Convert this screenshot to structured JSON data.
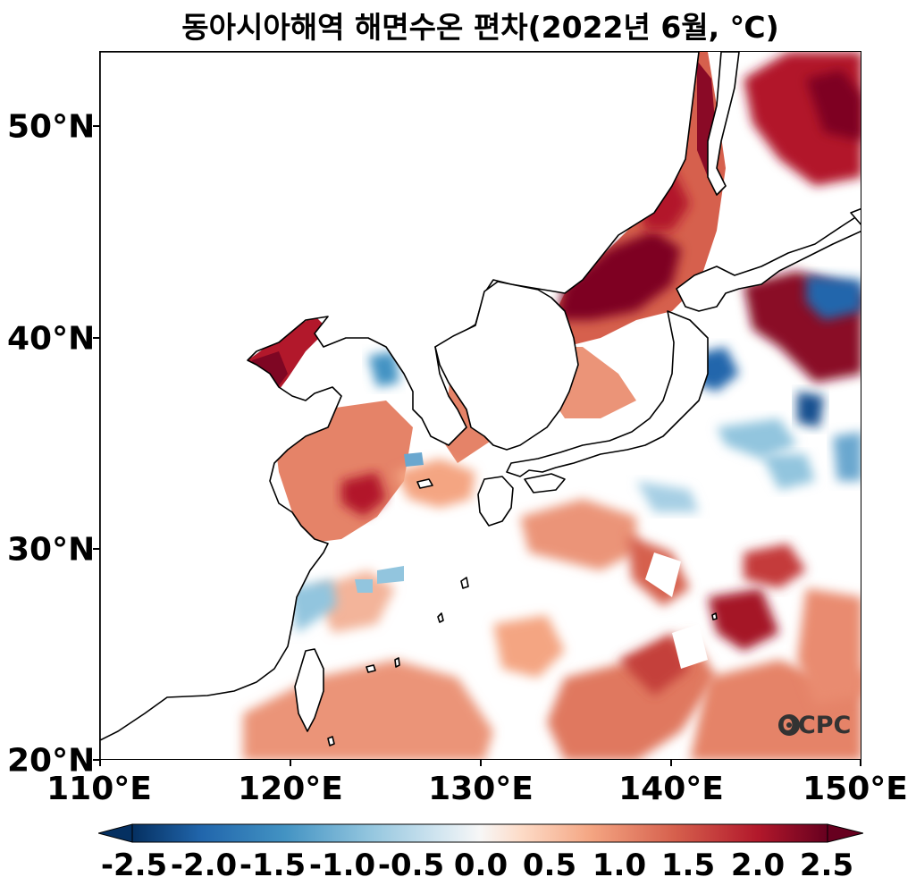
{
  "title": "동아시아해역 해면수온 편차(2022년 6월, ℃)",
  "lat_ticks": [
    "50°N",
    "40°N",
    "30°N",
    "20°N"
  ],
  "lon_ticks": [
    "110°E",
    "120°E",
    "130°E",
    "140°E",
    "150°E"
  ],
  "colorbar": {
    "labels": [
      "-2.5",
      "-2.0",
      "-1.5",
      "-1.0",
      "-0.5",
      "0.0",
      "0.5",
      "1.0",
      "1.5",
      "2.0",
      "2.5"
    ],
    "colors": [
      "#053061",
      "#2166ac",
      "#4393c3",
      "#92c5de",
      "#d1e5f0",
      "#f7f7f7",
      "#fddbc7",
      "#f4a582",
      "#d6604d",
      "#b2182b",
      "#67001f"
    ],
    "extend": "both"
  },
  "logo": "OCPC",
  "map_extent": {
    "lon": [
      110,
      150
    ],
    "lat": [
      20,
      53.5
    ]
  }
}
